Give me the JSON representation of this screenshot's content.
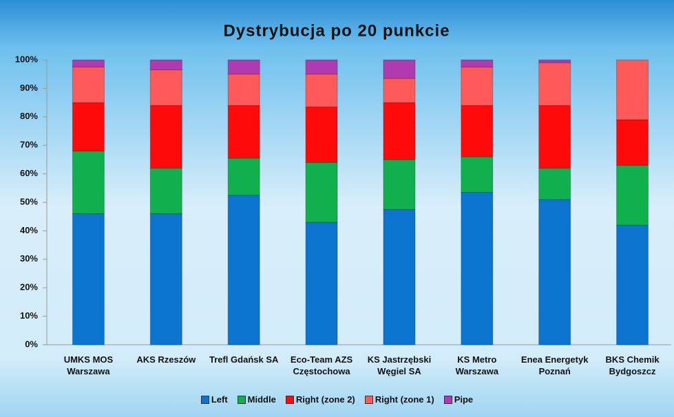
{
  "chart_data": {
    "type": "stacked_bar_percent",
    "title": "Dystrybucja po 20 punkcie",
    "categories": [
      "UMKS MOS Warszawa",
      "AKS Rzeszów",
      "Trefl Gdańsk SA",
      "Eco-Team AZS Częstochowa",
      "KS Jastrzębski Węgiel SA",
      "KS Metro Warszawa",
      "Enea Energetyk Poznań",
      "BKS Chemik Bydgoszcz"
    ],
    "series": [
      {
        "name": "Left",
        "color": "#0b74cf",
        "values": [
          46,
          46,
          52.5,
          43,
          47.5,
          53.5,
          51,
          42
        ]
      },
      {
        "name": "Middle",
        "color": "#11b04f",
        "values": [
          22,
          16,
          13,
          21,
          17.5,
          12.5,
          11,
          21
        ]
      },
      {
        "name": "Right (zone 2)",
        "color": "#ff0a0a",
        "values": [
          17,
          22,
          18.5,
          19.5,
          20,
          18,
          22,
          16
        ]
      },
      {
        "name": "Right (zone 1)",
        "color": "#ff5a5a",
        "values": [
          12.5,
          12.5,
          11,
          11.5,
          8.5,
          13.5,
          15,
          21
        ]
      },
      {
        "name": "Pipe",
        "color": "#b03ab0",
        "values": [
          2.5,
          3.5,
          5,
          5,
          6.5,
          2.5,
          1,
          0
        ]
      }
    ],
    "ylim": [
      0,
      100
    ],
    "yticks": [
      {
        "value": 0,
        "label": "0%"
      },
      {
        "value": 10,
        "label": "10%"
      },
      {
        "value": 20,
        "label": "20%"
      },
      {
        "value": 30,
        "label": "30%"
      },
      {
        "value": 40,
        "label": "40%"
      },
      {
        "value": 50,
        "label": "50%"
      },
      {
        "value": 60,
        "label": "60%"
      },
      {
        "value": 70,
        "label": "70%"
      },
      {
        "value": 80,
        "label": "80%"
      },
      {
        "value": 90,
        "label": "90%"
      },
      {
        "value": 100,
        "label": "100%"
      }
    ],
    "legend": "bottom"
  }
}
